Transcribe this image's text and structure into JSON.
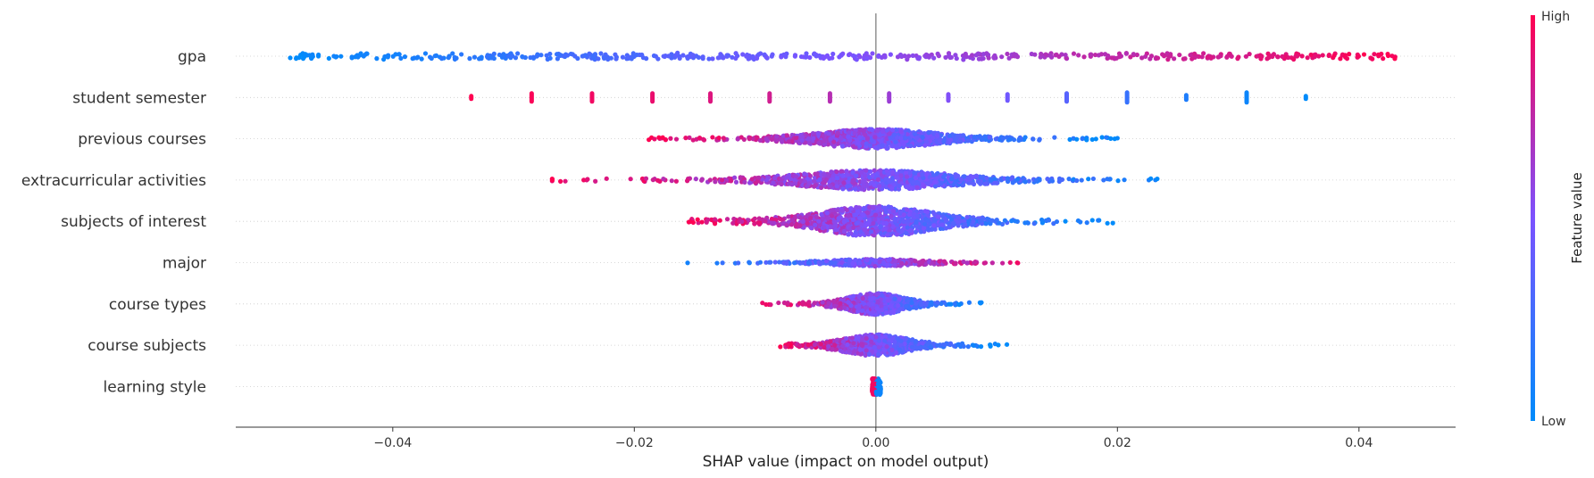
{
  "chart_data": {
    "type": "scatter",
    "subtype": "shap-beeswarm",
    "title": "",
    "xlabel": "SHAP value (impact on model output)",
    "ylabel": "",
    "xlim": [
      -0.053,
      0.048
    ],
    "xticks": [
      -0.04,
      -0.02,
      0.0,
      0.02,
      0.04
    ],
    "xtick_labels": [
      "−0.04",
      "−0.02",
      "0.00",
      "0.02",
      "0.04"
    ],
    "grid": false,
    "colorbar": {
      "label": "Feature value",
      "high_label": "High",
      "low_label": "Low",
      "low_color": "#008bfb",
      "mid_color": "#7c52ff",
      "high_color": "#ff0051"
    },
    "features": [
      {
        "name": "gpa",
        "range": [
          -0.0485,
          0.043
        ],
        "low_side": "left",
        "style": "band",
        "spread": 4,
        "count": 520
      },
      {
        "name": "student semester",
        "style": "discrete",
        "x": [
          -0.0335,
          -0.0285,
          -0.0235,
          -0.0185,
          -0.0137,
          -0.0088,
          -0.0038,
          0.0011,
          0.006,
          0.0109,
          0.0158,
          0.0208,
          0.0257,
          0.0307,
          0.0356
        ],
        "v": [
          1.0,
          0.98,
          0.95,
          0.92,
          0.87,
          0.82,
          0.72,
          0.62,
          0.52,
          0.45,
          0.35,
          0.22,
          0.12,
          0.05,
          0.0
        ],
        "heights": [
          8,
          14,
          14,
          14,
          14,
          14,
          14,
          14,
          12,
          12,
          14,
          16,
          10,
          16,
          8
        ]
      },
      {
        "name": "previous courses",
        "range": [
          -0.019,
          0.0205
        ],
        "low_side": "right",
        "style": "swarm",
        "spread": 11,
        "count": 1100
      },
      {
        "name": "extracurricular activities",
        "range": [
          -0.027,
          0.0245
        ],
        "low_side": "right",
        "style": "swarm",
        "spread": 11,
        "count": 1000
      },
      {
        "name": "subjects of interest",
        "range": [
          -0.0165,
          0.0197
        ],
        "low_side": "right",
        "style": "swarm",
        "spread": 17,
        "count": 1100
      },
      {
        "name": "major",
        "range": [
          -0.017,
          0.013
        ],
        "low_side": "left",
        "style": "swarm",
        "spread": 4,
        "count": 420
      },
      {
        "name": "course types",
        "range": [
          -0.0098,
          0.0088
        ],
        "low_side": "right",
        "style": "swarm",
        "spread": 12,
        "count": 750
      },
      {
        "name": "course subjects",
        "range": [
          -0.0085,
          0.0114
        ],
        "low_side": "right",
        "style": "swarm",
        "spread": 12,
        "count": 750
      },
      {
        "name": "learning style",
        "range": [
          -0.0003,
          0.0004
        ],
        "low_side": "right",
        "style": "split",
        "spread": 15,
        "count": 200
      }
    ]
  }
}
